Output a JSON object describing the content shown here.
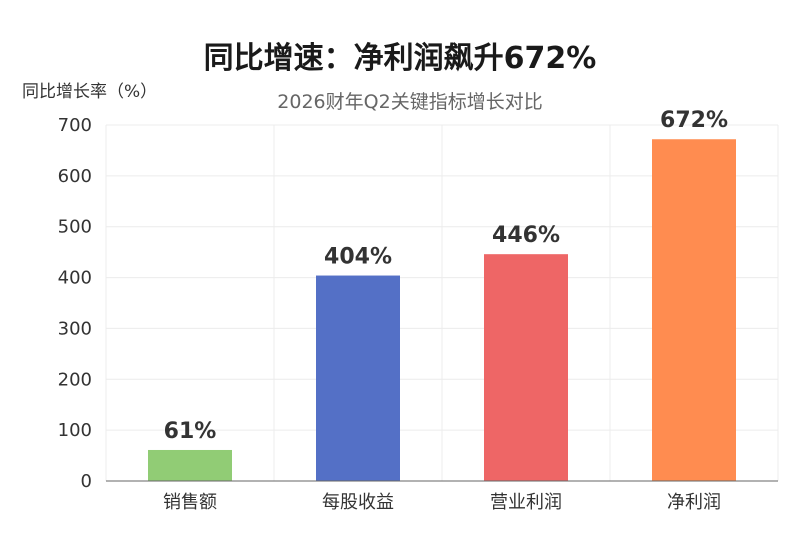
{
  "chart_data": {
    "type": "bar",
    "title": "同比增速：净利润飙升672%",
    "subtitle": "2026财年Q2关键指标增长对比",
    "ylabel": "同比增长率（%）",
    "xlabel": "",
    "categories": [
      "销售额",
      "每股收益",
      "营业利润",
      "净利润"
    ],
    "values": [
      61,
      404,
      446,
      672
    ],
    "data_labels": [
      "61%",
      "404%",
      "446%",
      "672%"
    ],
    "colors": [
      "#91cc75",
      "#5470c6",
      "#ee6666",
      "#ff8c50"
    ],
    "ylim": [
      0,
      700
    ],
    "yticks": [
      0,
      100,
      200,
      300,
      400,
      500,
      600,
      700
    ],
    "grid": true,
    "legend": "none"
  }
}
